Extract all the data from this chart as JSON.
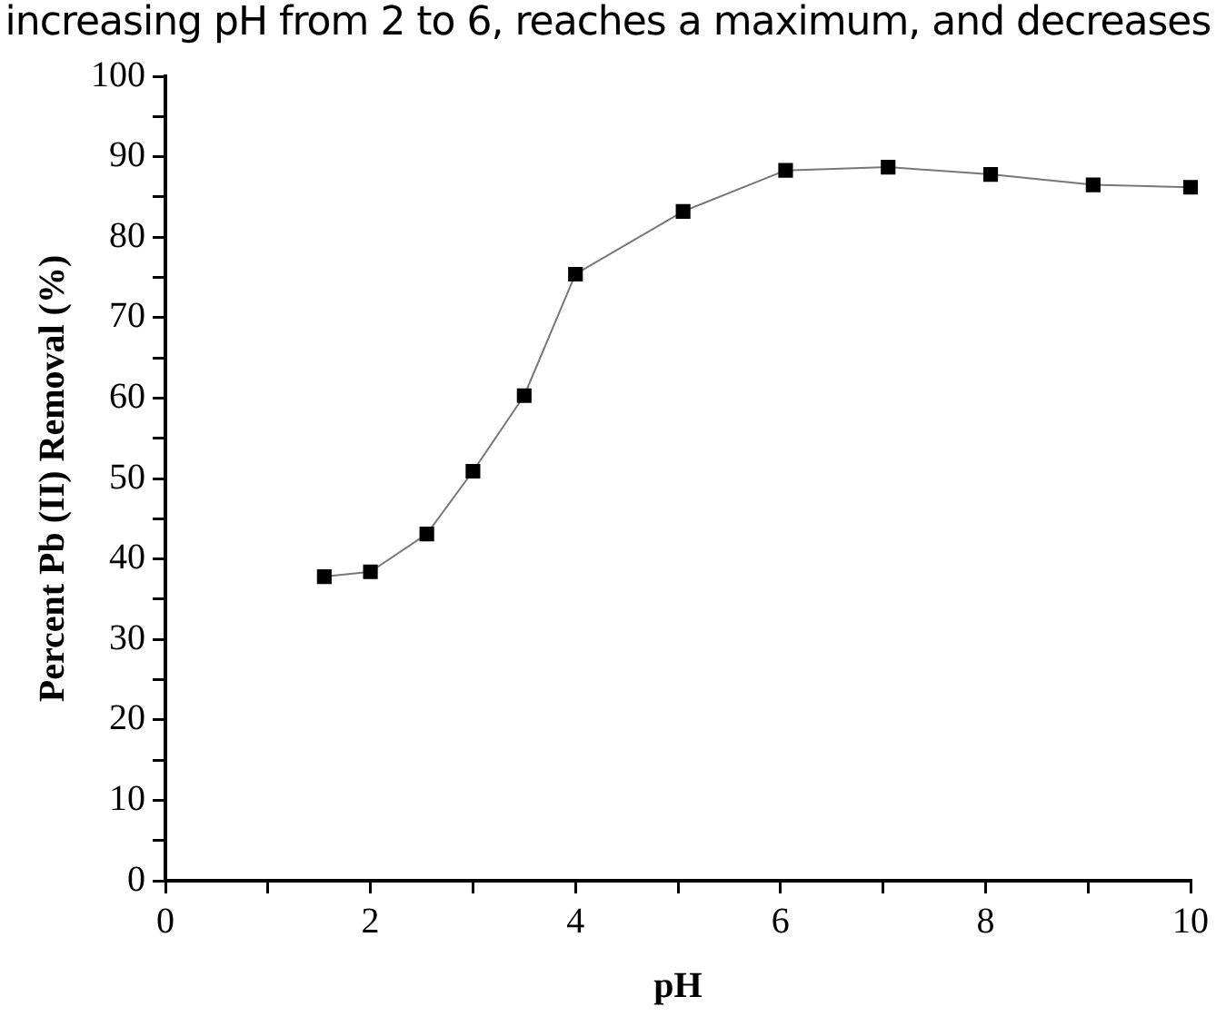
{
  "chart_data": {
    "type": "line",
    "title": "increasing pH from 2 to 6, reaches a maximum, and decreases",
    "xlabel": "pH",
    "ylabel": "Percent Pb (II) Removal (%)",
    "x": [
      1.55,
      2,
      2.55,
      3,
      3.5,
      4,
      5.05,
      6.05,
      7.05,
      8.05,
      9.05,
      10
    ],
    "series": [
      {
        "color": "#000000",
        "values": [
          37.8,
          38.4,
          43.1,
          50.9,
          60.3,
          75.4,
          83.2,
          88.3,
          88.7,
          87.8,
          86.5,
          86.2
        ]
      }
    ],
    "xlim": [
      0,
      10
    ],
    "xticks": [
      0,
      {
        "value": 1,
        "label": null
      },
      2,
      {
        "value": 3,
        "label": null
      },
      4,
      {
        "value": 5,
        "label": null
      },
      6,
      {
        "value": 7,
        "label": null
      },
      8,
      {
        "value": 9,
        "label": null
      },
      10
    ],
    "ylim": [
      0,
      100
    ],
    "yticks": [
      0,
      {
        "value": 5,
        "label": null
      },
      10,
      {
        "value": 15,
        "label": null
      },
      20,
      {
        "value": 25,
        "label": null
      },
      30,
      {
        "value": 35,
        "label": null
      },
      40,
      {
        "value": 45,
        "label": null
      },
      50,
      {
        "value": 55,
        "label": null
      },
      60,
      {
        "value": 65,
        "label": null
      },
      70,
      {
        "value": 75,
        "label": null
      },
      80,
      {
        "value": 85,
        "label": null
      },
      90,
      {
        "value": 95,
        "label": null
      },
      100
    ],
    "grid": false,
    "legend": false,
    "marker": "square",
    "line_style": "solid"
  }
}
